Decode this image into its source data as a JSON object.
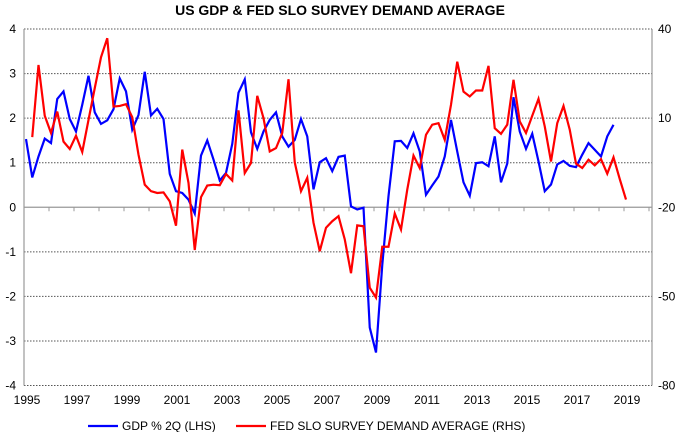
{
  "chart_data": {
    "type": "line",
    "title": "US GDP & FED SLO SURVEY DEMAND AVERAGE",
    "frequency": "quarterly",
    "x_tick_labels": [
      "1995",
      "1997",
      "1999",
      "2001",
      "2003",
      "2005",
      "2007",
      "2009",
      "2011",
      "2013",
      "2015",
      "2017",
      "2019"
    ],
    "y_left": {
      "range": [
        -4,
        4
      ],
      "tick_labels": [
        "4",
        "3",
        "2",
        "1",
        "0",
        "-1",
        "-2",
        "-3",
        "-4"
      ]
    },
    "y_right": {
      "range": [
        -80,
        40
      ],
      "tick_labels": [
        "40",
        "10",
        "-20",
        "-50",
        "-80"
      ]
    },
    "grid": true,
    "legend_position": "bottom",
    "series": [
      {
        "name": "GDP % 2Q (LHS)",
        "axis": "left",
        "color": "#0000ff",
        "start_quarter": "1995Q1",
        "values": [
          1.53,
          0.67,
          1.14,
          1.54,
          1.44,
          2.43,
          2.6,
          1.98,
          1.7,
          2.3,
          2.95,
          2.13,
          1.87,
          1.95,
          2.2,
          2.89,
          2.6,
          1.74,
          2.07,
          3.04,
          2.06,
          2.21,
          1.98,
          0.75,
          0.36,
          0.32,
          0.17,
          -0.14,
          1.16,
          1.5,
          1.07,
          0.6,
          0.77,
          1.42,
          2.57,
          2.87,
          1.68,
          1.31,
          1.7,
          1.96,
          2.13,
          1.59,
          1.36,
          1.51,
          1.98,
          1.59,
          0.4,
          1.01,
          1.1,
          0.81,
          1.13,
          1.16,
          0.02,
          -0.05,
          -0.01,
          -2.7,
          -3.26,
          -1.3,
          0.25,
          1.48,
          1.49,
          1.33,
          1.66,
          1.25,
          0.28,
          0.49,
          0.69,
          1.14,
          1.96,
          1.25,
          0.56,
          0.26,
          0.99,
          1.01,
          0.92,
          1.59,
          0.56,
          0.98,
          2.47,
          1.7,
          1.31,
          1.65,
          1.03,
          0.36,
          0.51,
          0.96,
          1.04,
          0.93,
          0.9,
          1.18,
          1.44,
          1.29,
          1.14,
          1.59,
          1.85
        ]
      },
      {
        "name": "FED SLO SURVEY DEMAND AVERAGE (RHS)",
        "axis": "right",
        "color": "#ff0000",
        "start_quarter": "1995Q2",
        "values": [
          3.6,
          27.9,
          10.8,
          5.0,
          12.2,
          2.1,
          -0.4,
          4.1,
          -1.4,
          9.4,
          20.1,
          30.5,
          36.9,
          13.9,
          14.1,
          14.7,
          10.3,
          -2.3,
          -12.4,
          -14.6,
          -15.2,
          -15.0,
          -18.0,
          -26.2,
          -0.6,
          -11.8,
          -34.4,
          -16.6,
          -12.7,
          -12.4,
          -12.6,
          -8.8,
          -11.0,
          12.6,
          -8.5,
          -5.1,
          17.5,
          10.0,
          -1.2,
          -0.1,
          5.0,
          23.1,
          -4.9,
          -14.6,
          -10.1,
          -25.2,
          -34.8,
          -26.9,
          -24.7,
          -23.0,
          -30.8,
          -42.2,
          -26.1,
          -26.4,
          -47.1,
          -50.4,
          -33.3,
          -33.3,
          -22.1,
          -27.5,
          -14.1,
          -2.6,
          -6.8,
          4.4,
          7.8,
          8.3,
          2.7,
          14.5,
          29.0,
          18.9,
          17.3,
          19.3,
          19.3,
          27.6,
          6.6,
          4.7,
          7.8,
          22.9,
          8.9,
          5.0,
          10.8,
          16.5,
          7.2,
          -4.6,
          8.3,
          14.1,
          6.1,
          -5.3,
          -6.8,
          -4.0,
          -5.9,
          -3.8,
          -8.7,
          -3.2,
          -10.5,
          -17.4
        ]
      }
    ]
  }
}
